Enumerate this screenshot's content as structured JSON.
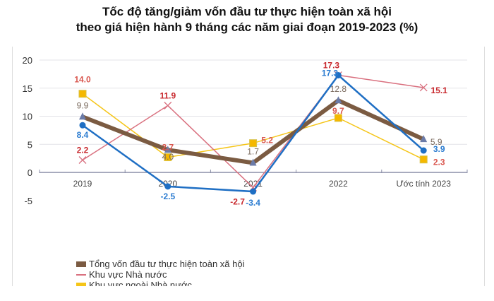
{
  "title": [
    "Tốc độ tăng/giảm vốn đầu tư thực hiện toàn xã hội",
    "theo giá hiện hành 9 tháng các năm giai đoạn 2019-2023 (%)"
  ],
  "chart_data": {
    "type": "line",
    "categories": [
      "2019",
      "2020",
      "2021",
      "2022",
      "Ước tính 2023"
    ],
    "ylim": [
      -5,
      20
    ],
    "yticks": [
      -5,
      0,
      5,
      10,
      15,
      20
    ],
    "grid": true,
    "legend_position": "bottom",
    "series": [
      {
        "name": "Tổng vốn đầu tư thực hiện toàn xã hội",
        "values": [
          9.9,
          4.0,
          1.7,
          12.8,
          5.9
        ],
        "color": "#7b5b42",
        "label_color": "#7a6a5e",
        "marker": "triangle"
      },
      {
        "name": "Khu vực Nhà nước",
        "values": [
          2.2,
          11.9,
          -2.7,
          17.3,
          15.1
        ],
        "color": "#d9707f",
        "label_color": "#c8282d",
        "marker": "x"
      },
      {
        "name": "Khu vực ngoài Nhà nước",
        "values": [
          14.0,
          2.7,
          5.2,
          9.7,
          2.3
        ],
        "color": "#f5c518",
        "label_color": "#d9574f",
        "marker": "square"
      },
      {
        "values": [
          8.4,
          -2.5,
          -3.4,
          17.3,
          3.9
        ],
        "color": "#1f6fc4",
        "label_color": "#2a7bd0",
        "marker": "circle"
      }
    ]
  }
}
